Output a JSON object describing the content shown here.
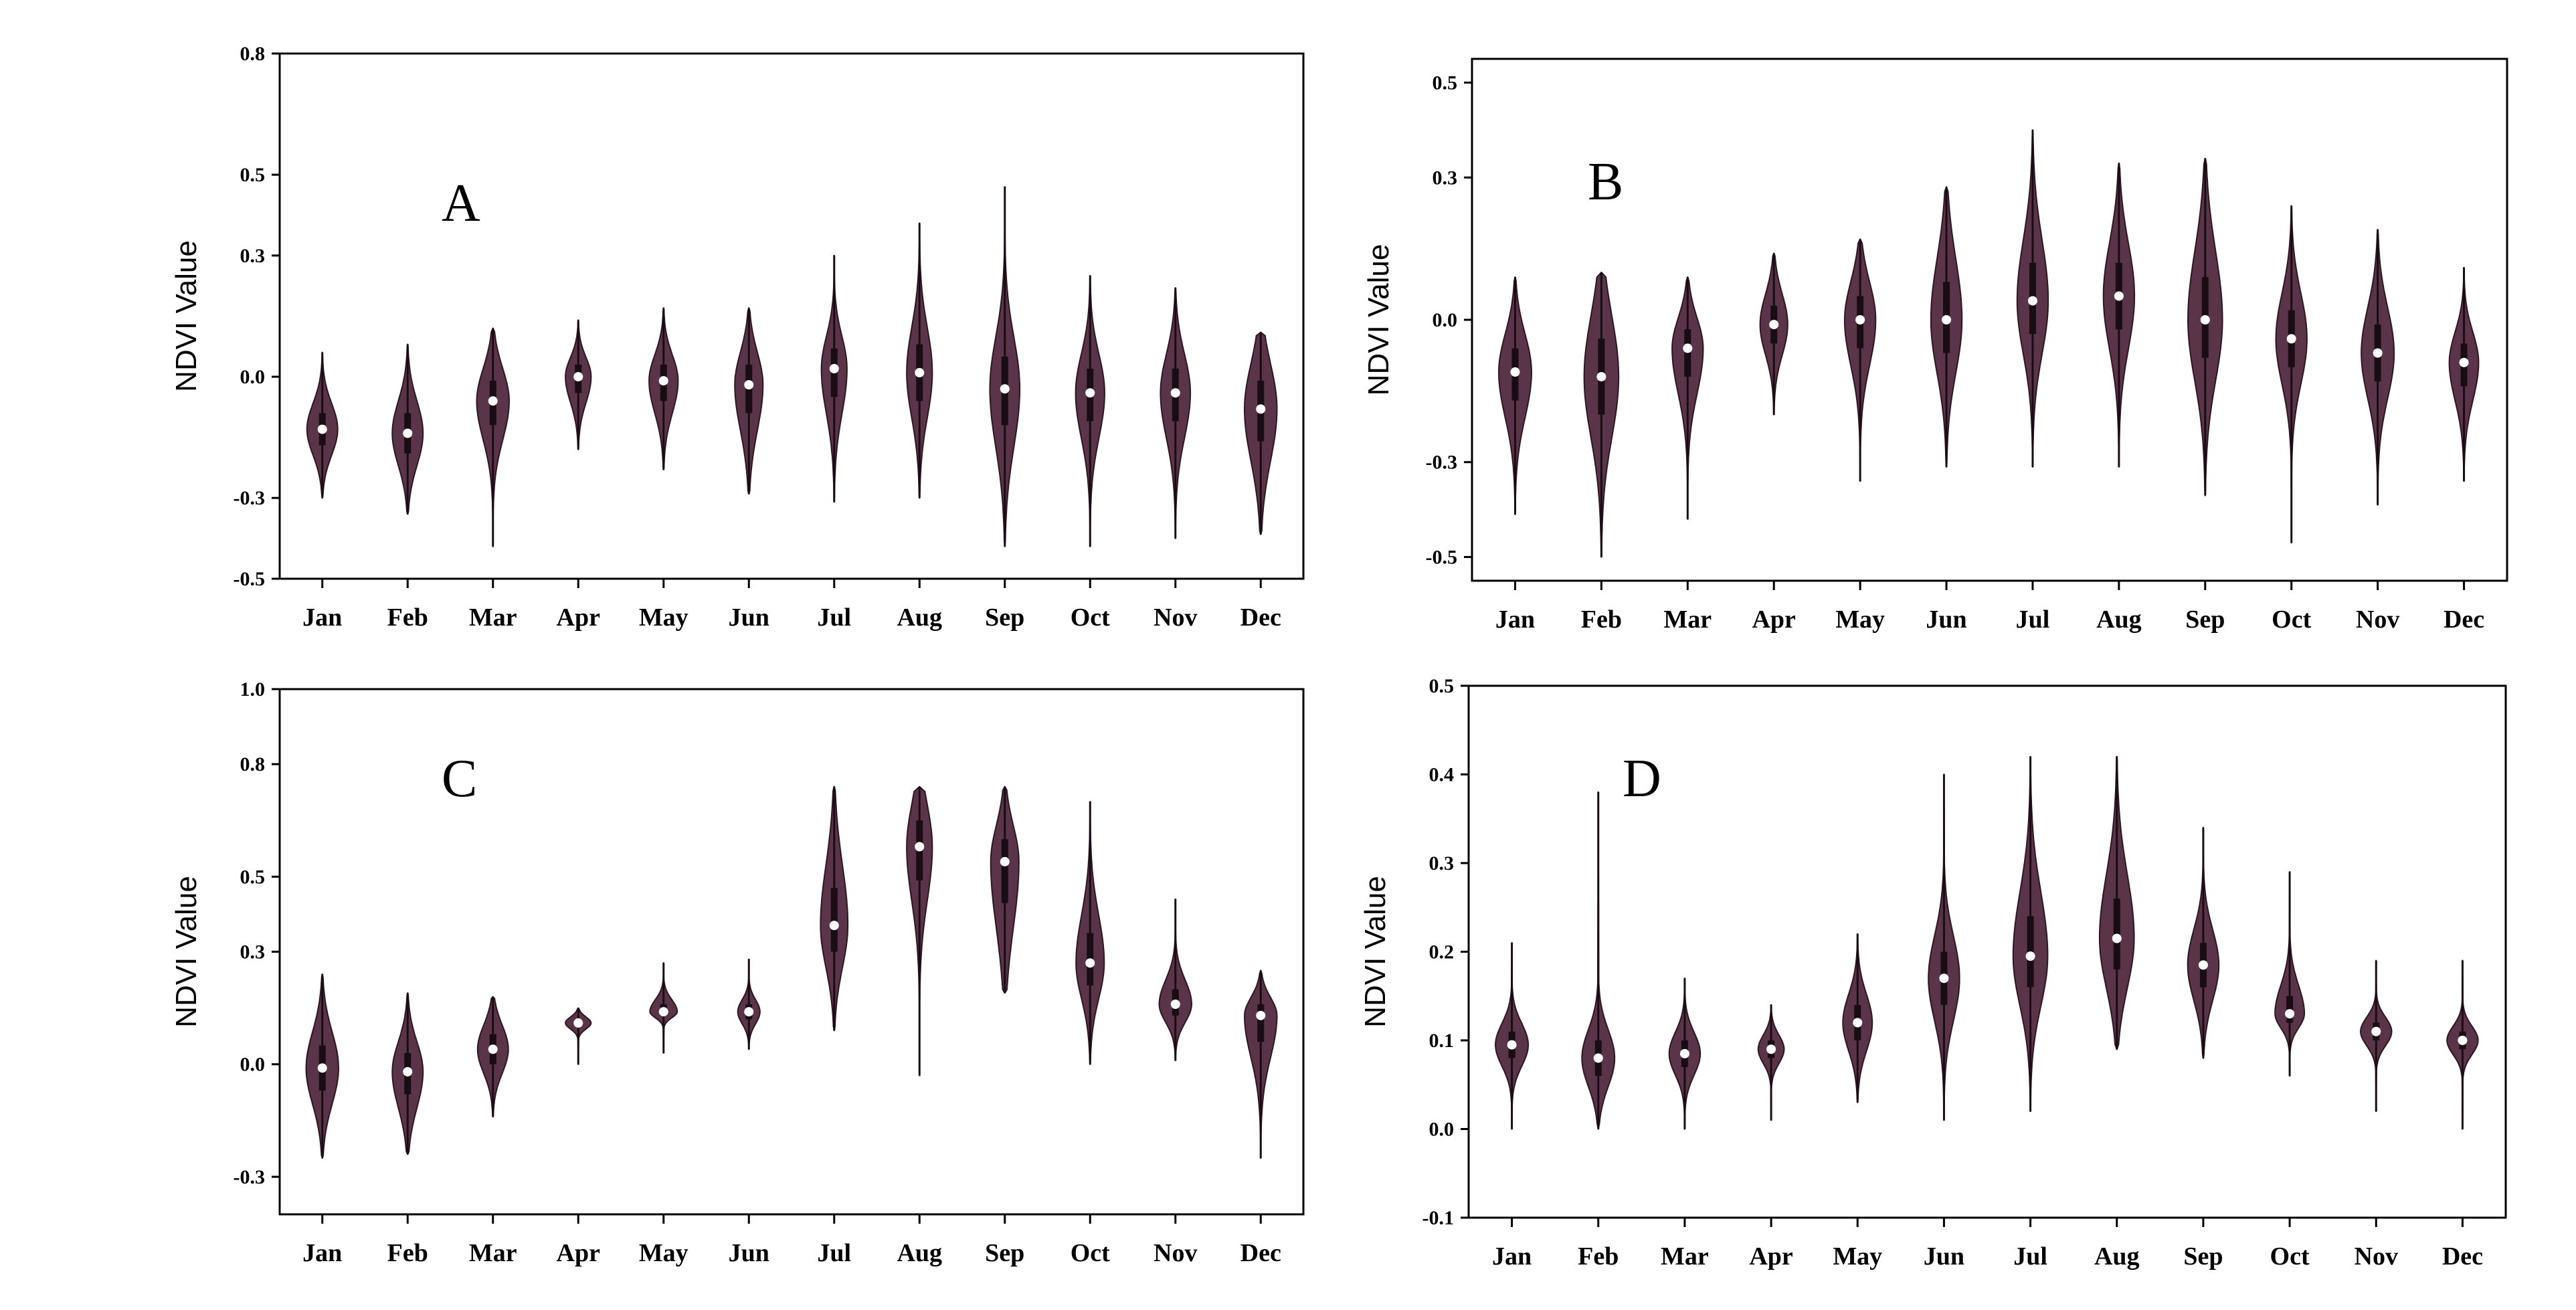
{
  "figure": {
    "violin_color": "#5a3448",
    "median_color": "#ffffff",
    "frame_color": "#000000"
  },
  "chart_data": [
    {
      "type": "violin",
      "panel": "A",
      "ylabel": "NDVI Value",
      "ylim": [
        -0.5,
        0.8
      ],
      "yticks": [
        0.8,
        0.5,
        0.3,
        0.0,
        -0.3,
        -0.5
      ],
      "ytick_labels": [
        "0.8",
        "0.5",
        "0.3",
        "0.0",
        "-0.3",
        "-0.5"
      ],
      "categories": [
        "Jan",
        "Feb",
        "Mar",
        "Apr",
        "May",
        "Jun",
        "Jul",
        "Aug",
        "Sep",
        "Oct",
        "Nov",
        "Dec"
      ],
      "medians": [
        -0.13,
        -0.14,
        -0.06,
        0.0,
        -0.01,
        -0.02,
        0.02,
        0.01,
        -0.03,
        -0.04,
        -0.04,
        -0.08
      ],
      "mins": [
        -0.3,
        -0.34,
        -0.42,
        -0.18,
        -0.23,
        -0.29,
        -0.31,
        -0.3,
        -0.42,
        -0.42,
        -0.4,
        -0.39
      ],
      "maxs": [
        0.06,
        0.08,
        0.12,
        0.14,
        0.17,
        0.17,
        0.3,
        0.38,
        0.47,
        0.25,
        0.22,
        0.11
      ],
      "q1": [
        -0.17,
        -0.19,
        -0.12,
        -0.04,
        -0.06,
        -0.09,
        -0.05,
        -0.06,
        -0.12,
        -0.11,
        -0.11,
        -0.16
      ],
      "q3": [
        -0.09,
        -0.09,
        -0.01,
        0.03,
        0.03,
        0.03,
        0.07,
        0.08,
        0.05,
        0.02,
        0.02,
        -0.01
      ],
      "widths": [
        0.36,
        0.36,
        0.38,
        0.3,
        0.34,
        0.33,
        0.3,
        0.3,
        0.35,
        0.34,
        0.35,
        0.38
      ]
    },
    {
      "type": "violin",
      "panel": "B",
      "ylabel": "NDVI Value",
      "ylim": [
        -0.55,
        0.55
      ],
      "yticks": [
        0.5,
        0.3,
        0.0,
        -0.3,
        -0.5
      ],
      "ytick_labels": [
        "0.5",
        "0.3",
        "0.0",
        "-0.3",
        "-0.5"
      ],
      "categories": [
        "Jan",
        "Feb",
        "Mar",
        "Apr",
        "May",
        "Jun",
        "Jul",
        "Aug",
        "Sep",
        "Oct",
        "Nov",
        "Dec"
      ],
      "medians": [
        -0.11,
        -0.12,
        -0.06,
        -0.01,
        0.0,
        0.0,
        0.04,
        0.05,
        0.0,
        -0.04,
        -0.07,
        -0.09
      ],
      "mins": [
        -0.41,
        -0.5,
        -0.42,
        -0.2,
        -0.34,
        -0.31,
        -0.31,
        -0.31,
        -0.37,
        -0.47,
        -0.39,
        -0.34
      ],
      "maxs": [
        0.09,
        0.1,
        0.09,
        0.14,
        0.17,
        0.28,
        0.4,
        0.33,
        0.34,
        0.24,
        0.19,
        0.11
      ],
      "q1": [
        -0.17,
        -0.2,
        -0.12,
        -0.05,
        -0.06,
        -0.07,
        -0.03,
        -0.02,
        -0.08,
        -0.1,
        -0.13,
        -0.14
      ],
      "q3": [
        -0.06,
        -0.04,
        -0.02,
        0.03,
        0.05,
        0.08,
        0.12,
        0.12,
        0.09,
        0.02,
        -0.01,
        -0.05
      ],
      "widths": [
        0.38,
        0.4,
        0.36,
        0.32,
        0.36,
        0.36,
        0.36,
        0.36,
        0.4,
        0.36,
        0.38,
        0.34
      ]
    },
    {
      "type": "violin",
      "panel": "C",
      "ylabel": "NDVI Value",
      "ylim": [
        -0.4,
        1.0
      ],
      "yticks": [
        1.0,
        0.8,
        0.5,
        0.3,
        0.0,
        -0.3
      ],
      "ytick_labels": [
        "1.0",
        "0.8",
        "0.5",
        "0.3",
        "0.0",
        "-0.3"
      ],
      "categories": [
        "Jan",
        "Feb",
        "Mar",
        "Apr",
        "May",
        "Jun",
        "Jul",
        "Aug",
        "Sep",
        "Oct",
        "Nov",
        "Dec"
      ],
      "medians": [
        -0.01,
        -0.02,
        0.04,
        0.11,
        0.14,
        0.14,
        0.37,
        0.58,
        0.54,
        0.27,
        0.16,
        0.13
      ],
      "mins": [
        -0.25,
        -0.24,
        -0.14,
        0.0,
        0.03,
        0.04,
        0.09,
        -0.03,
        0.19,
        0.0,
        0.01,
        -0.25
      ],
      "maxs": [
        0.24,
        0.19,
        0.18,
        0.15,
        0.27,
        0.28,
        0.74,
        0.74,
        0.74,
        0.7,
        0.44,
        0.25
      ],
      "q1": [
        -0.07,
        -0.08,
        0.0,
        0.1,
        0.13,
        0.12,
        0.3,
        0.49,
        0.43,
        0.21,
        0.13,
        0.06
      ],
      "q3": [
        0.05,
        0.03,
        0.08,
        0.12,
        0.16,
        0.16,
        0.47,
        0.65,
        0.6,
        0.35,
        0.2,
        0.16
      ],
      "widths": [
        0.38,
        0.36,
        0.36,
        0.3,
        0.32,
        0.26,
        0.32,
        0.3,
        0.33,
        0.33,
        0.38,
        0.38
      ]
    },
    {
      "type": "violin",
      "panel": "D",
      "ylabel": "NDVI Value",
      "ylim": [
        -0.1,
        0.5
      ],
      "yticks": [
        0.5,
        0.4,
        0.3,
        0.2,
        0.1,
        0.0,
        -0.1
      ],
      "ytick_labels": [
        "0.5",
        "0.4",
        "0.3",
        "0.2",
        "0.1",
        "0.0",
        "-0.1"
      ],
      "categories": [
        "Jan",
        "Feb",
        "Mar",
        "Apr",
        "May",
        "Jun",
        "Jul",
        "Aug",
        "Sep",
        "Oct",
        "Nov",
        "Dec"
      ],
      "medians": [
        0.095,
        0.08,
        0.085,
        0.09,
        0.12,
        0.17,
        0.195,
        0.215,
        0.185,
        0.13,
        0.11,
        0.1
      ],
      "mins": [
        0.0,
        0.0,
        0.0,
        0.01,
        0.03,
        0.01,
        0.02,
        0.09,
        0.08,
        0.06,
        0.02,
        0.0
      ],
      "maxs": [
        0.21,
        0.38,
        0.17,
        0.14,
        0.22,
        0.4,
        0.42,
        0.42,
        0.34,
        0.29,
        0.19,
        0.19
      ],
      "q1": [
        0.08,
        0.06,
        0.07,
        0.08,
        0.1,
        0.14,
        0.16,
        0.18,
        0.16,
        0.12,
        0.1,
        0.09
      ],
      "q3": [
        0.11,
        0.1,
        0.1,
        0.1,
        0.14,
        0.2,
        0.24,
        0.26,
        0.21,
        0.15,
        0.12,
        0.11
      ],
      "widths": [
        0.38,
        0.38,
        0.36,
        0.3,
        0.34,
        0.36,
        0.4,
        0.4,
        0.36,
        0.34,
        0.36,
        0.36
      ]
    }
  ]
}
